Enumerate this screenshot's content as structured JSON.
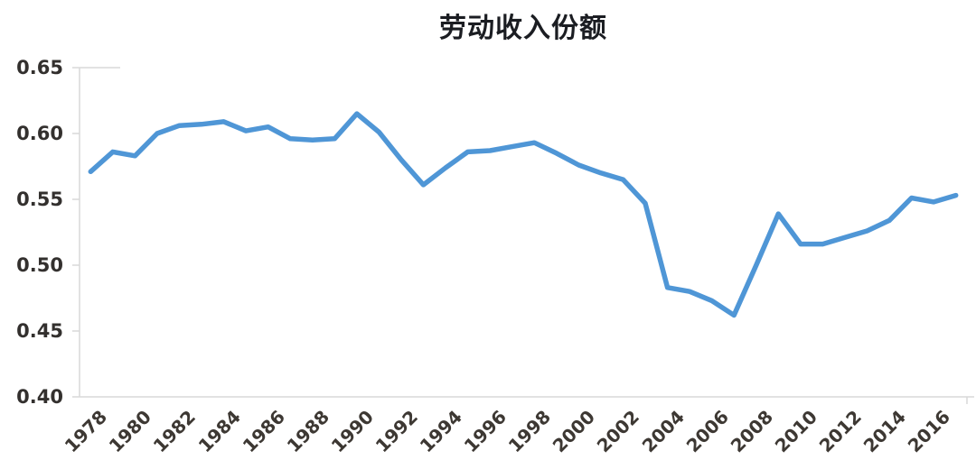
{
  "title": "劳动收入份额",
  "colors": {
    "line": "#4f96d6",
    "axis": "#d9d9d9",
    "tick_label": "#33302e",
    "title": "#1b1d22"
  },
  "chart_data": {
    "type": "line",
    "title": "劳动收入份额",
    "series": [
      {
        "name": "劳动收入份额",
        "x": [
          1978,
          1979,
          1980,
          1981,
          1982,
          1983,
          1984,
          1985,
          1986,
          1987,
          1988,
          1989,
          1990,
          1991,
          1992,
          1993,
          1994,
          1995,
          1996,
          1997,
          1998,
          1999,
          2000,
          2001,
          2002,
          2003,
          2004,
          2005,
          2006,
          2007,
          2008,
          2009,
          2010,
          2011,
          2012,
          2013,
          2014,
          2015,
          2016,
          2017
        ],
        "values": [
          0.571,
          0.586,
          0.583,
          0.6,
          0.606,
          0.607,
          0.609,
          0.602,
          0.605,
          0.596,
          0.595,
          0.596,
          0.615,
          0.601,
          0.58,
          0.561,
          0.574,
          0.586,
          0.587,
          0.59,
          0.593,
          0.585,
          0.576,
          0.57,
          0.565,
          0.547,
          0.483,
          0.48,
          0.473,
          0.462,
          0.5,
          0.539,
          0.516,
          0.516,
          0.521,
          0.526,
          0.534,
          0.551,
          0.548,
          0.553
        ]
      }
    ],
    "xlabel": "",
    "ylabel": "",
    "ylim": [
      0.4,
      0.65
    ],
    "ytick_step": 0.05,
    "ytick_labels": [
      "0.65",
      "0.60",
      "0.55",
      "0.50",
      "0.45",
      "0.40"
    ],
    "xtick_labels": [
      "1978",
      "1980",
      "1982",
      "1984",
      "1986",
      "1988",
      "1990",
      "1992",
      "1994",
      "1996",
      "1998",
      "2000",
      "2002",
      "2004",
      "2006",
      "2008",
      "2010",
      "2012",
      "2014",
      "2016"
    ],
    "xtick_every": 2,
    "grid": false,
    "legend": "none"
  }
}
